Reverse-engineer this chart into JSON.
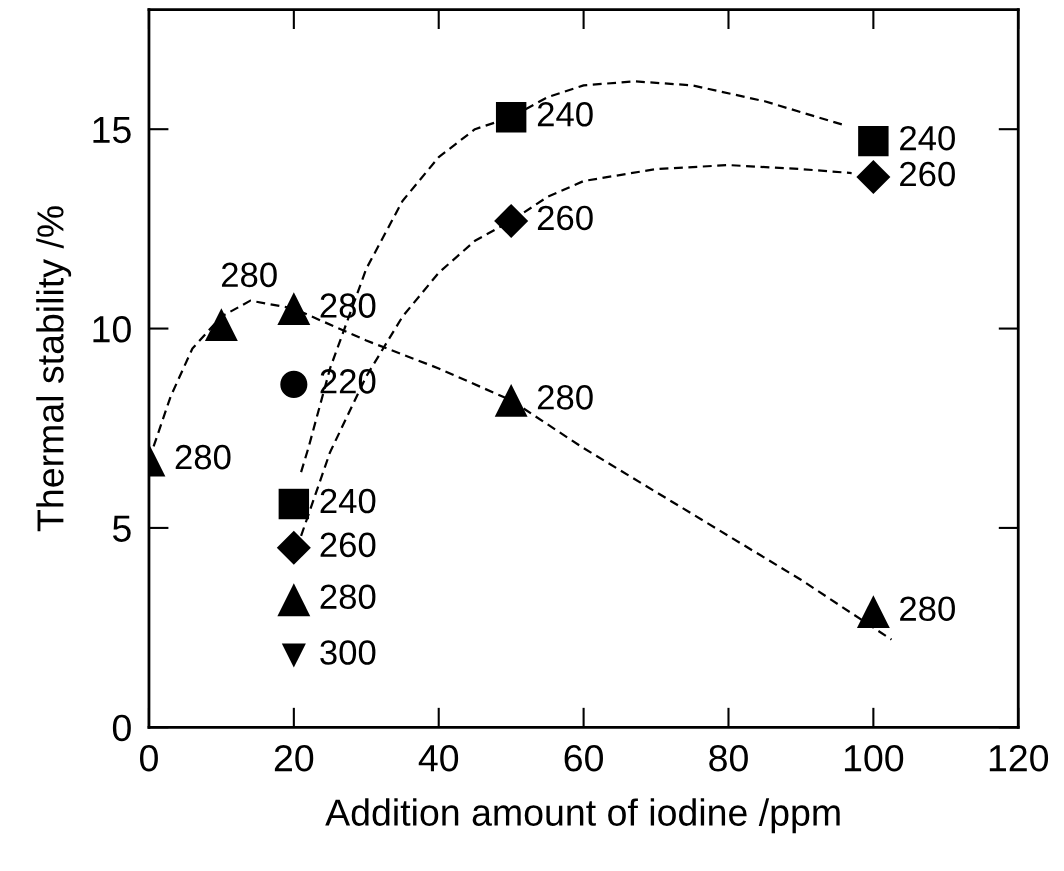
{
  "chart_data": {
    "type": "scatter",
    "xlabel": "Addition amount of iodine /ppm",
    "ylabel": "Thermal stability /%",
    "xlim": [
      0,
      120
    ],
    "xticks": [
      0,
      20,
      40,
      60,
      80,
      100,
      120
    ],
    "ylim": [
      0,
      18
    ],
    "yticks": [
      0,
      5,
      10,
      15
    ],
    "grid": false,
    "legend": false,
    "series": [
      {
        "type": "line",
        "color": "#000000",
        "line_style": "dashed",
        "marker": "none",
        "x": [
          0,
          3,
          6,
          10,
          14,
          20,
          30,
          40,
          50,
          60,
          70,
          80,
          90,
          102.5
        ],
        "values": [
          6.7,
          8.3,
          9.5,
          10.3,
          10.7,
          10.5,
          9.7,
          9.0,
          8.2,
          7.0,
          5.9,
          4.8,
          3.7,
          2.2
        ]
      },
      {
        "type": "line",
        "color": "#000000",
        "line_style": "dashed",
        "marker": "none",
        "x": [
          21,
          22,
          25,
          30,
          35,
          40,
          45,
          50,
          55,
          60,
          67,
          75,
          85,
          96
        ],
        "values": [
          6.4,
          7.0,
          9.0,
          11.5,
          13.2,
          14.3,
          15.0,
          15.3,
          15.8,
          16.1,
          16.2,
          16.1,
          15.7,
          15.1
        ]
      },
      {
        "type": "line",
        "color": "#000000",
        "line_style": "dashed",
        "marker": "none",
        "x": [
          21,
          25,
          30,
          35,
          40,
          45,
          50,
          55,
          60,
          70,
          80,
          90,
          97
        ],
        "values": [
          4.8,
          6.9,
          8.8,
          10.3,
          11.4,
          12.2,
          12.7,
          13.3,
          13.7,
          14.0,
          14.1,
          14.0,
          13.9
        ]
      },
      {
        "color": "#000000",
        "marker": "triangle",
        "x": [
          0,
          10,
          20,
          50,
          100,
          20
        ],
        "values": [
          6.7,
          10.1,
          10.5,
          8.2,
          2.9,
          3.2
        ]
      },
      {
        "color": "#000000",
        "marker": "circle",
        "x": [
          20
        ],
        "values": [
          8.6
        ]
      },
      {
        "color": "#000000",
        "marker": "square",
        "x": [
          20,
          50,
          100
        ],
        "values": [
          5.6,
          15.3,
          14.7
        ]
      },
      {
        "color": "#000000",
        "marker": "diamond",
        "x": [
          20,
          50,
          100
        ],
        "values": [
          4.5,
          12.7,
          13.8
        ]
      },
      {
        "color": "#000000",
        "marker": "triangle_down",
        "x": [
          20
        ],
        "values": [
          1.8
        ]
      }
    ],
    "annotations": [
      {
        "text": "280",
        "x": 0,
        "y": 6.7
      },
      {
        "text": "280",
        "x": 10,
        "y": 10.1
      },
      {
        "text": "280",
        "x": 20,
        "y": 10.5
      },
      {
        "text": "280",
        "x": 50,
        "y": 8.2
      },
      {
        "text": "280",
        "x": 100,
        "y": 2.9
      },
      {
        "text": "220",
        "x": 20,
        "y": 8.6
      },
      {
        "text": "240",
        "x": 20,
        "y": 5.6
      },
      {
        "text": "260",
        "x": 20,
        "y": 4.5
      },
      {
        "text": "280",
        "x": 20,
        "y": 3.2
      },
      {
        "text": "300",
        "x": 20,
        "y": 1.8
      },
      {
        "text": "240",
        "x": 50,
        "y": 15.3
      },
      {
        "text": "260",
        "x": 50,
        "y": 12.7
      },
      {
        "text": "240",
        "x": 100,
        "y": 14.7
      },
      {
        "text": "260",
        "x": 100,
        "y": 13.8
      }
    ]
  }
}
